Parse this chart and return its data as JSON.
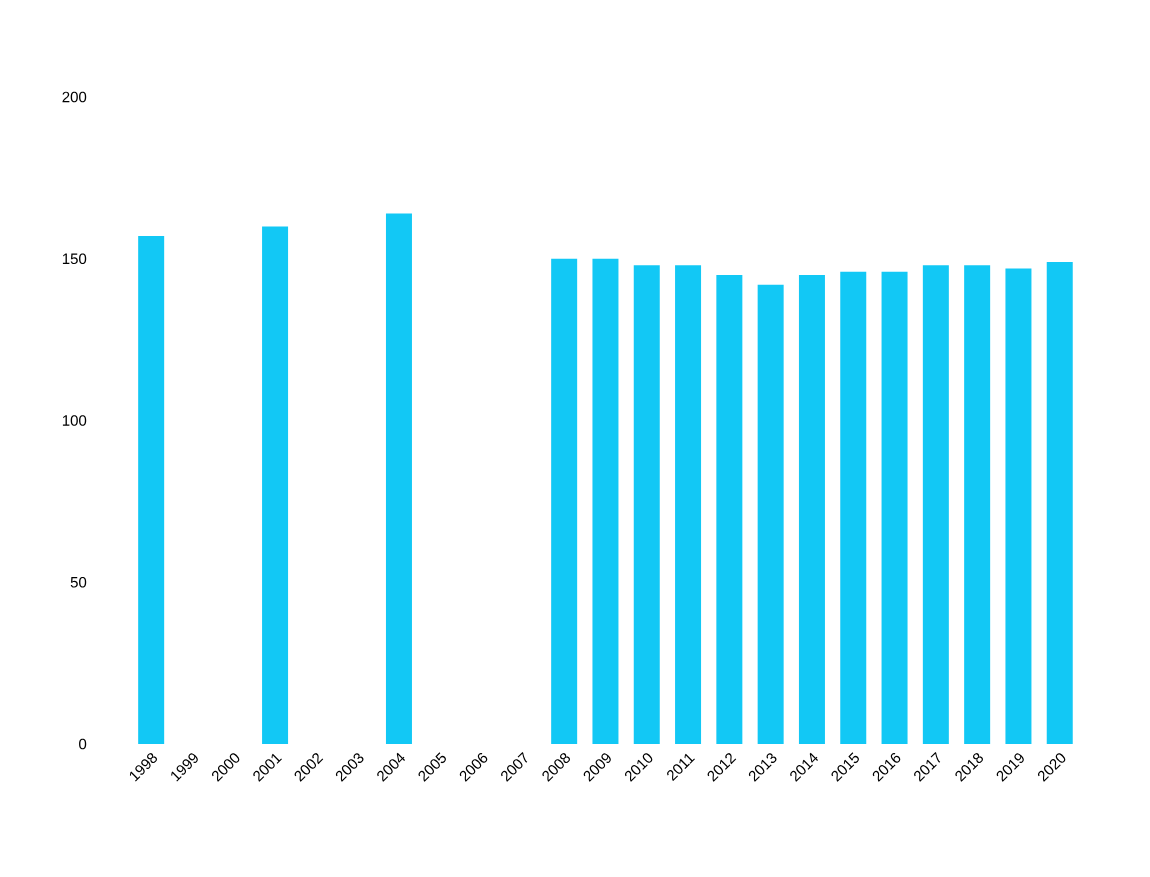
{
  "chart_data": {
    "type": "bar",
    "categories": [
      "1998",
      "1999",
      "2000",
      "2001",
      "2002",
      "2003",
      "2004",
      "2005",
      "2006",
      "2007",
      "2008",
      "2009",
      "2010",
      "2011",
      "2012",
      "2013",
      "2014",
      "2015",
      "2016",
      "2017",
      "2018",
      "2019",
      "2020"
    ],
    "values": [
      157,
      null,
      null,
      160,
      null,
      null,
      164,
      null,
      null,
      null,
      150,
      150,
      148,
      148,
      145,
      142,
      145,
      146,
      146,
      148,
      148,
      147,
      149
    ],
    "color": "#12c8f5",
    "ylim": [
      0,
      200
    ],
    "yticks": [
      0,
      50,
      100,
      150,
      200
    ]
  }
}
